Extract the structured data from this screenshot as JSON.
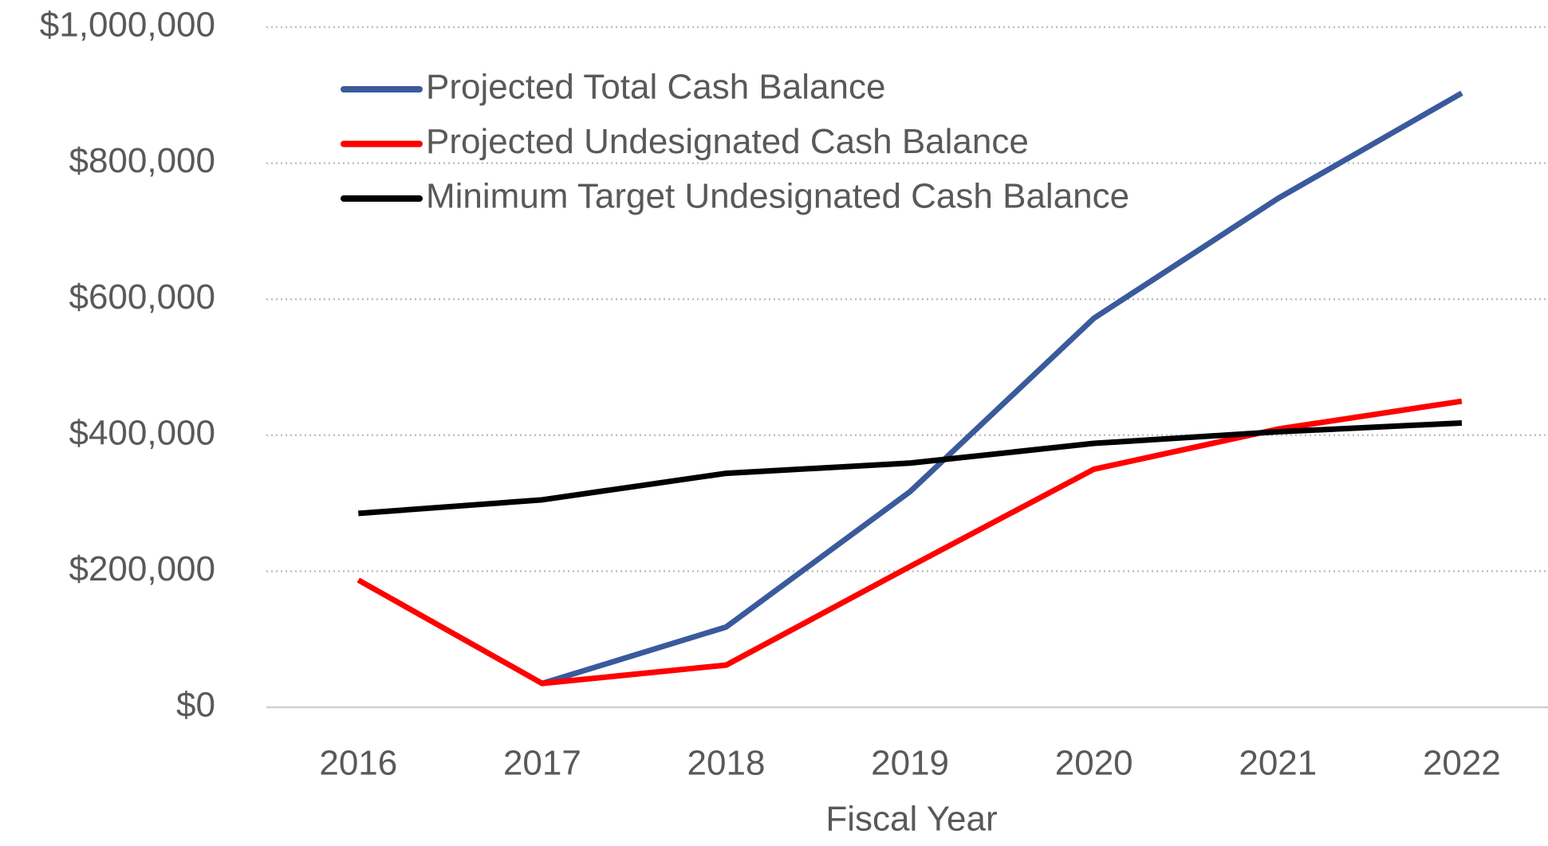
{
  "chart_data": {
    "type": "line",
    "x_label": "Fiscal Year",
    "categories": [
      "2016",
      "2017",
      "2018",
      "2019",
      "2020",
      "2021",
      "2022"
    ],
    "series": [
      {
        "name": "Projected Total Cash Balance",
        "color": "#3a5a9c",
        "values": [
          null,
          35000,
          118000,
          317000,
          572000,
          748000,
          903000
        ]
      },
      {
        "name": "Projected Undesignated Cash Balance",
        "color": "#ff0000",
        "values": [
          187000,
          35000,
          62000,
          207000,
          350000,
          409000,
          450000
        ]
      },
      {
        "name": "Minimum Target Undesignated Cash Balance",
        "color": "#000000",
        "values": [
          285000,
          305000,
          344000,
          359000,
          388000,
          405000,
          418000
        ]
      }
    ],
    "ylim": [
      0,
      1000000
    ],
    "yticks": [
      {
        "value": 0,
        "label": "$0"
      },
      {
        "value": 200000,
        "label": "$200,000"
      },
      {
        "value": 400000,
        "label": "$400,000"
      },
      {
        "value": 600000,
        "label": "$600,000"
      },
      {
        "value": 800000,
        "label": "$800,000"
      },
      {
        "value": 1000000,
        "label": "$1,000,000"
      }
    ],
    "grid": true,
    "legend": "top-left"
  }
}
